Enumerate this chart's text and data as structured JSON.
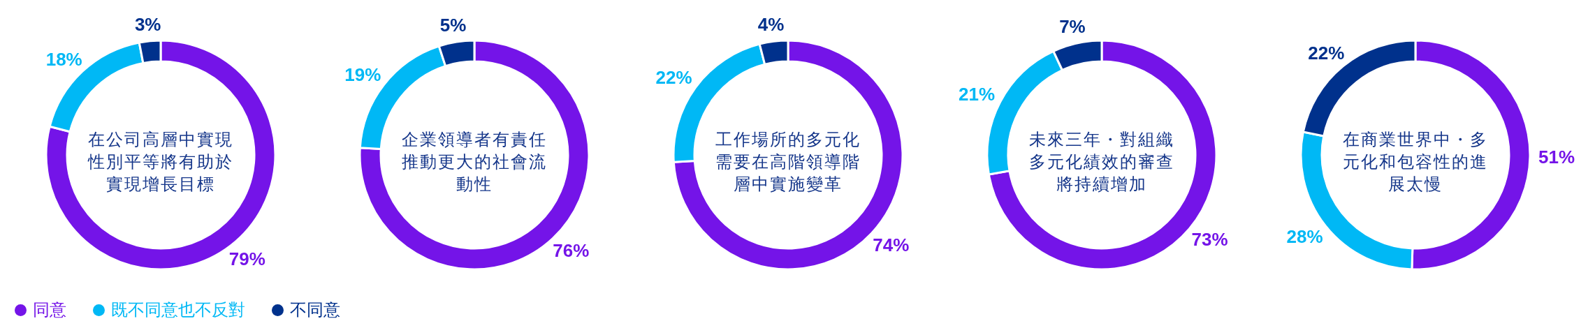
{
  "chart_data": [
    {
      "type": "donut",
      "title": "在公司高層中實現性別平等將有助於實現增長目標",
      "categories": [
        "同意",
        "既不同意也不反對",
        "不同意"
      ],
      "values": [
        79,
        18,
        3
      ],
      "value_labels": [
        "79%",
        "18%",
        "3%"
      ],
      "colors": [
        "#7414e8",
        "#00b8f5",
        "#00318c"
      ],
      "legend": "bottom"
    },
    {
      "type": "donut",
      "title": "企業領導者有責任推動更大的社會流動性",
      "categories": [
        null,
        null,
        null
      ],
      "values": [
        76,
        19,
        5
      ],
      "value_labels": [
        "76%",
        "19%",
        "5%"
      ],
      "colors": [
        "#7414e8",
        "#00b8f5",
        "#00318c"
      ]
    },
    {
      "type": "donut",
      "title": "工作場所的多元化需要在高階領導階層中實施變革",
      "categories": [
        null,
        null,
        null
      ],
      "values": [
        74,
        22,
        4
      ],
      "value_labels": [
        "74%",
        "22%",
        "4%"
      ],
      "colors": [
        "#7414e8",
        "#00b8f5",
        "#00318c"
      ]
    },
    {
      "type": "donut",
      "title": "未來三年・對組織多元化績效的審查將持續增加",
      "categories": [
        null,
        null,
        null
      ],
      "values": [
        73,
        21,
        7
      ],
      "value_labels": [
        "73%",
        "21%",
        "7%"
      ],
      "colors": [
        "#7414e8",
        "#00b8f5",
        "#00318c"
      ]
    },
    {
      "type": "donut",
      "title": "在商業世界中・多元化和包容性的進展太慢",
      "categories": [
        null,
        null,
        null
      ],
      "values": [
        51,
        28,
        22
      ],
      "value_labels": [
        "51%",
        "28%",
        "22%"
      ],
      "colors": [
        "#7414e8",
        "#00b8f5",
        "#00318c"
      ]
    }
  ]
}
